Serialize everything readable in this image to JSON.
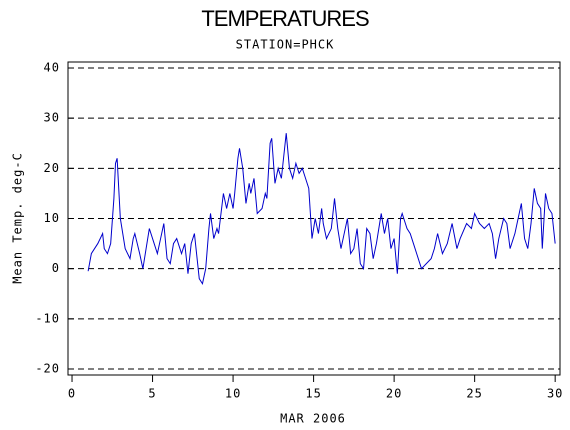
{
  "chart_data": {
    "type": "line",
    "title": "TEMPERATURES",
    "subtitle": "STATION=PHCK",
    "x_label": "MAR 2006",
    "y_label": "Mean Temp. deg-C",
    "x": [
      1.0,
      1.2,
      1.6,
      1.9,
      2.0,
      2.2,
      2.4,
      2.6,
      2.7,
      2.8,
      3.0,
      3.3,
      3.6,
      3.8,
      3.9,
      4.2,
      4.4,
      4.6,
      4.8,
      5.1,
      5.3,
      5.5,
      5.7,
      5.9,
      6.1,
      6.3,
      6.5,
      6.8,
      7.0,
      7.2,
      7.4,
      7.6,
      7.9,
      8.1,
      8.3,
      8.5,
      8.6,
      8.8,
      9.0,
      9.1,
      9.4,
      9.6,
      9.8,
      10.0,
      10.1,
      10.3,
      10.4,
      10.6,
      10.8,
      11.0,
      11.1,
      11.3,
      11.5,
      11.8,
      12.0,
      12.1,
      12.3,
      12.4,
      12.6,
      12.8,
      13.0,
      13.3,
      13.5,
      13.7,
      13.9,
      14.1,
      14.3,
      14.5,
      14.7,
      14.9,
      15.1,
      15.3,
      15.5,
      15.6,
      15.8,
      16.1,
      16.3,
      16.5,
      16.7,
      16.9,
      17.1,
      17.3,
      17.5,
      17.7,
      17.9,
      18.1,
      18.3,
      18.5,
      18.7,
      18.9,
      19.2,
      19.4,
      19.6,
      19.8,
      20.0,
      20.2,
      20.4,
      20.5,
      20.8,
      21.0,
      21.2,
      21.4,
      21.7,
      22.0,
      22.3,
      22.5,
      22.7,
      23.0,
      23.3,
      23.6,
      23.9,
      24.1,
      24.5,
      24.8,
      25.0,
      25.3,
      25.6,
      25.9,
      26.1,
      26.3,
      26.5,
      26.8,
      27.0,
      27.2,
      27.5,
      27.7,
      27.9,
      28.1,
      28.3,
      28.5,
      28.7,
      28.9,
      29.1,
      29.2,
      29.4,
      29.6,
      29.8,
      30.0
    ],
    "series": [
      {
        "name": "Mean Temp",
        "color": "#0000cc",
        "values": [
          -0.5,
          3,
          5,
          7,
          4,
          3,
          5,
          14,
          21,
          22,
          10,
          4,
          2,
          6,
          7,
          3,
          0,
          4,
          8,
          5,
          3,
          6,
          9,
          2,
          1,
          5,
          6,
          3,
          5,
          -1,
          5,
          7,
          -2,
          -3,
          0,
          8,
          11,
          6,
          8,
          7,
          15,
          12,
          15,
          12,
          15,
          22,
          24,
          20,
          13,
          17,
          15,
          18,
          11,
          12,
          15,
          14,
          25,
          26,
          17,
          20,
          18,
          27,
          20,
          18,
          21,
          19,
          20,
          18,
          16,
          6,
          10,
          7,
          12,
          9,
          6,
          8,
          14,
          8,
          4,
          7,
          10,
          3,
          4,
          8,
          1,
          0,
          8,
          7,
          2,
          5,
          11,
          7,
          10,
          4,
          6,
          -1,
          10,
          11,
          8,
          7,
          5,
          3,
          0,
          1,
          2,
          4,
          7,
          3,
          5,
          9,
          4,
          6,
          9,
          8,
          11,
          9,
          8,
          9,
          7,
          2,
          6,
          10,
          9,
          4,
          7,
          10,
          13,
          6,
          4,
          9,
          16,
          13,
          12,
          4,
          15,
          12,
          11,
          5
        ]
      }
    ],
    "xlim": [
      -0.25,
      30.3
    ],
    "xticks": [
      0,
      5,
      10,
      15,
      20,
      25,
      30
    ],
    "ylim": [
      -21.2,
      41.2
    ],
    "yticks": [
      -20,
      -10,
      0,
      10,
      20,
      30,
      40
    ],
    "grid": true
  }
}
